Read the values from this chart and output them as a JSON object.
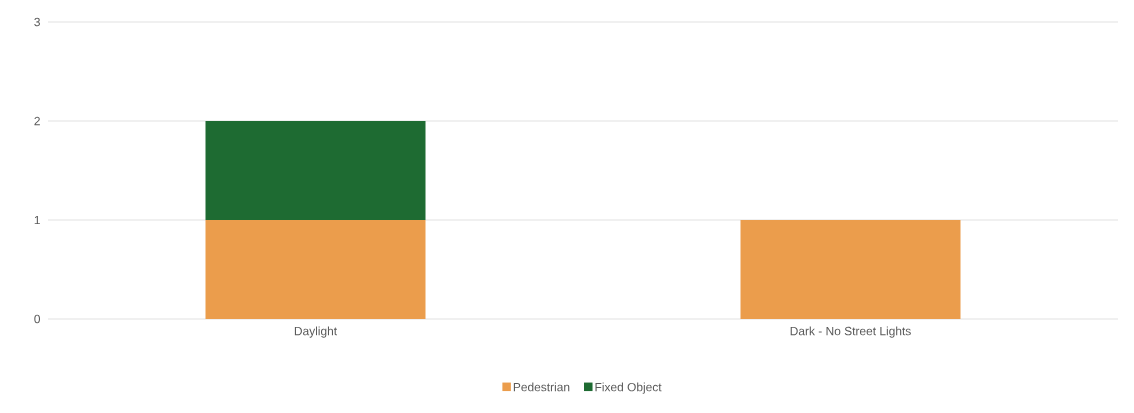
{
  "chart_data": {
    "type": "bar",
    "stacked": true,
    "categories": [
      "Daylight",
      "Dark - No Street Lights"
    ],
    "series": [
      {
        "name": "Pedestrian",
        "color": "#eb9d4c",
        "values": [
          1,
          1
        ]
      },
      {
        "name": "Fixed Object",
        "color": "#1e6b32",
        "values": [
          1,
          null
        ]
      }
    ],
    "ylim": [
      0,
      3
    ],
    "yticks": [
      0,
      1,
      2,
      3
    ],
    "grid": "y",
    "legend": "bottom"
  }
}
